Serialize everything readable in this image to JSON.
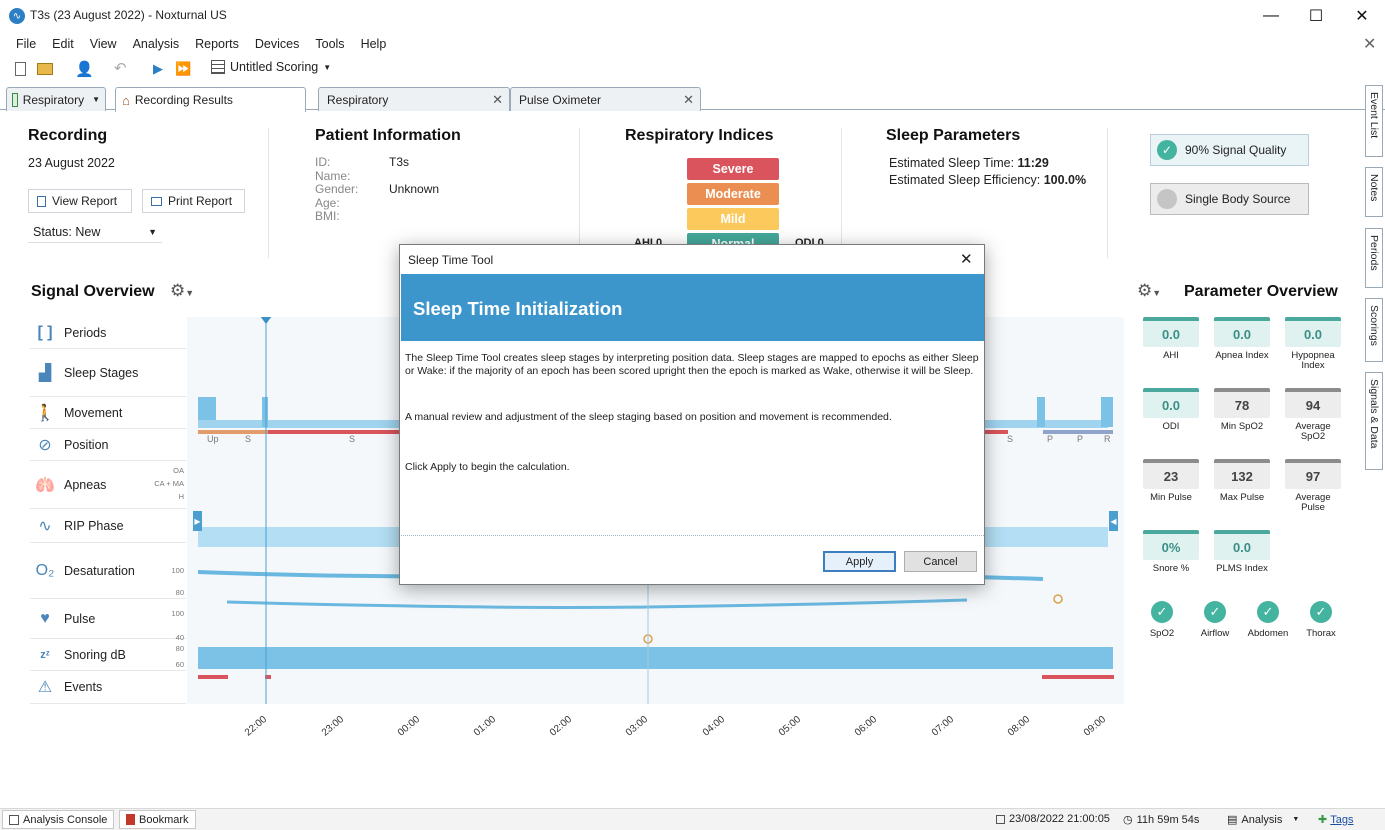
{
  "window": {
    "title": "T3s (23 August 2022)  - Noxturnal US"
  },
  "menu": [
    "File",
    "Edit",
    "View",
    "Analysis",
    "Reports",
    "Devices",
    "Tools",
    "Help"
  ],
  "toolbar": {
    "scoring": "Untitled Scoring"
  },
  "tabs": {
    "dropdown": "Respiratory",
    "items": [
      "Recording Results",
      "Respiratory",
      "Pulse Oximeter"
    ]
  },
  "recording": {
    "header": "Recording",
    "date": "23 August 2022",
    "view_report": "View Report",
    "print_report": "Print Report",
    "status": "Status: New"
  },
  "patient": {
    "header": "Patient Information",
    "fields": [
      {
        "label": "ID:",
        "value": "T3s"
      },
      {
        "label": "Name:",
        "value": ""
      },
      {
        "label": "Gender:",
        "value": "Unknown"
      },
      {
        "label": "Age:",
        "value": ""
      },
      {
        "label": "BMI:",
        "value": ""
      }
    ]
  },
  "respiratory": {
    "header": "Respiratory Indices",
    "levels": [
      "Severe",
      "Moderate",
      "Mild",
      "Normal"
    ],
    "ahi": "AHI 0",
    "odi": "ODI 0"
  },
  "sleep": {
    "header": "Sleep Parameters",
    "time_label": "Estimated Sleep Time:",
    "time_value": "11:29",
    "eff_label": "Estimated Sleep Efficiency:",
    "eff_value": "100.0%"
  },
  "quality": {
    "signal": "90% Signal Quality",
    "source": "Single Body Source"
  },
  "signal_overview": {
    "header": "Signal Overview",
    "rows": [
      "Periods",
      "Sleep Stages",
      "Movement",
      "Position",
      "Apneas",
      "RIP Phase",
      "Desaturation",
      "Pulse",
      "Snoring dB",
      "Events"
    ],
    "apnea_axis": [
      "OA",
      "CA + MA",
      "H"
    ],
    "desat_axis": [
      "100",
      "80"
    ],
    "pulse_axis": [
      "100",
      "40"
    ],
    "snore_axis": [
      "80",
      "60"
    ],
    "position_marks": [
      "Up",
      "S",
      "S",
      "S",
      "P",
      "P",
      "R"
    ],
    "times": [
      "22:00",
      "23:00",
      "00:00",
      "01:00",
      "02:00",
      "03:00",
      "04:00",
      "05:00",
      "06:00",
      "07:00",
      "08:00",
      "09:00"
    ]
  },
  "parameter_overview": {
    "header": "Parameter Overview",
    "tiles": [
      {
        "value": "0.0",
        "label": "AHI",
        "style": "teal"
      },
      {
        "value": "0.0",
        "label": "Apnea Index",
        "style": "teal"
      },
      {
        "value": "0.0",
        "label": "Hypopnea Index",
        "style": "teal"
      },
      {
        "value": "0.0",
        "label": "ODI",
        "style": "teal"
      },
      {
        "value": "78",
        "label": "Min SpO2",
        "style": "grey"
      },
      {
        "value": "94",
        "label": "Average SpO2",
        "style": "grey"
      },
      {
        "value": "23",
        "label": "Min Pulse",
        "style": "grey"
      },
      {
        "value": "132",
        "label": "Max Pulse",
        "style": "grey"
      },
      {
        "value": "97",
        "label": "Average Pulse",
        "style": "grey"
      },
      {
        "value": "0%",
        "label": "Snore %",
        "style": "teal"
      },
      {
        "value": "0.0",
        "label": "PLMS Index",
        "style": "teal"
      }
    ],
    "checks": [
      "SpO2",
      "Airflow",
      "Abdomen",
      "Thorax"
    ]
  },
  "side_tabs": [
    "Event List",
    "Notes",
    "Periods",
    "Scorings",
    "Signals & Data"
  ],
  "dialog": {
    "title": "Sleep Time Tool",
    "heading": "Sleep Time Initialization",
    "p1": "The Sleep Time Tool creates sleep stages by interpreting position data. Sleep stages are mapped to epochs as either Sleep or Wake: if the majority of an epoch has been scored upright then the epoch is marked as Wake, otherwise it will be Sleep.",
    "p2": "A manual review and adjustment of the sleep staging based on position and movement is recommended.",
    "p3": "Click Apply to begin the calculation.",
    "apply": "Apply",
    "cancel": "Cancel"
  },
  "statusbar": {
    "console": "Analysis Console",
    "bookmark": "Bookmark",
    "datetime": "23/08/2022 21:00:05",
    "duration": "11h 59m 54s",
    "mode": "Analysis",
    "tags": "Tags"
  }
}
